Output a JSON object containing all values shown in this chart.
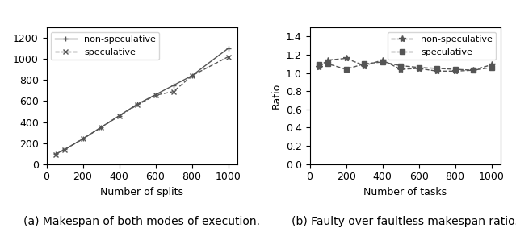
{
  "left": {
    "title": "(a) Makespan of both modes of execution.",
    "xlabel": "Number of splits",
    "ylabel": "",
    "xlim": [
      0,
      1050
    ],
    "ylim": [
      0,
      1300
    ],
    "yticks": [
      0,
      200,
      400,
      600,
      800,
      1000,
      1200
    ],
    "xticks": [
      0,
      200,
      400,
      600,
      800,
      1000
    ],
    "non_spec_x": [
      50,
      100,
      200,
      300,
      400,
      500,
      600,
      700,
      800,
      1000
    ],
    "non_spec_y": [
      95,
      140,
      240,
      350,
      460,
      570,
      660,
      750,
      840,
      1100
    ],
    "spec_x": [
      50,
      100,
      200,
      300,
      400,
      500,
      600,
      700,
      800,
      1000
    ],
    "spec_y": [
      93,
      138,
      240,
      348,
      458,
      563,
      655,
      690,
      840,
      1020
    ],
    "non_spec_label": "non-speculative",
    "spec_label": "speculative",
    "non_spec_color": "#555555",
    "spec_color": "#555555"
  },
  "right": {
    "title": "(b) Faulty over faultless makespan ratio.",
    "xlabel": "Number of tasks",
    "ylabel": "Ratio",
    "xlim": [
      0,
      1050
    ],
    "ylim": [
      0,
      1.5
    ],
    "yticks": [
      0,
      0.2,
      0.4,
      0.6,
      0.8,
      1.0,
      1.2,
      1.4
    ],
    "xticks": [
      0,
      200,
      400,
      600,
      800,
      1000
    ],
    "non_spec_x": [
      50,
      100,
      200,
      300,
      400,
      500,
      600,
      700,
      800,
      900,
      1000
    ],
    "non_spec_y": [
      1.07,
      1.14,
      1.16,
      1.08,
      1.14,
      1.04,
      1.05,
      1.02,
      1.02,
      1.03,
      1.09
    ],
    "spec_x": [
      50,
      100,
      200,
      300,
      400,
      500,
      600,
      700,
      800,
      900,
      1000
    ],
    "spec_y": [
      1.09,
      1.1,
      1.04,
      1.1,
      1.12,
      1.08,
      1.06,
      1.05,
      1.04,
      1.03,
      1.06
    ],
    "non_spec_label": "non-speculative",
    "spec_label": "speculative",
    "non_spec_color": "#555555",
    "spec_color": "#555555"
  },
  "background_color": "#ffffff",
  "font_size": 9
}
